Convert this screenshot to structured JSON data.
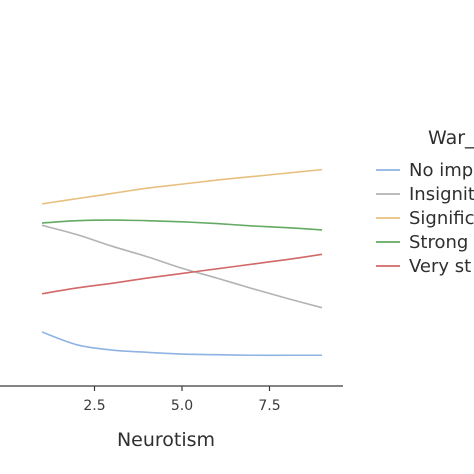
{
  "chart_data": {
    "type": "line",
    "xlabel": "Neurotism",
    "ylabel": "",
    "xlim": [
      1.0,
      9.5
    ],
    "ylim": [
      0,
      1
    ],
    "x_ticks": [
      2.5,
      5.0,
      7.5
    ],
    "x_tick_labels": [
      "2.5",
      "5.0",
      "7.5"
    ],
    "grid": false,
    "legend": {
      "title": "War_",
      "placement": "right",
      "entries": [
        "No imp",
        "Insignit",
        "Signific",
        "Strong",
        "Very st"
      ]
    },
    "x": [
      1,
      2,
      3,
      4,
      5,
      6,
      7,
      8,
      9
    ],
    "series": [
      {
        "name": "No imp",
        "color": "#8fb3e3",
        "values": [
          0.062,
          0.04,
          0.031,
          0.027,
          0.024,
          0.023,
          0.022,
          0.022,
          0.022
        ]
      },
      {
        "name": "Insignit",
        "color": "#b3b3b3",
        "values": [
          0.246,
          0.23,
          0.21,
          0.192,
          0.172,
          0.155,
          0.137,
          0.12,
          0.104
        ]
      },
      {
        "name": "Signific",
        "color": "#e7c07f",
        "values": [
          0.283,
          0.292,
          0.301,
          0.31,
          0.317,
          0.324,
          0.33,
          0.336,
          0.342
        ]
      },
      {
        "name": "Strong",
        "color": "#63aa63",
        "values": [
          0.25,
          0.254,
          0.255,
          0.254,
          0.252,
          0.249,
          0.245,
          0.242,
          0.238
        ]
      },
      {
        "name": "Very st",
        "color": "#d26868",
        "values": [
          0.128,
          0.138,
          0.146,
          0.155,
          0.163,
          0.171,
          0.179,
          0.187,
          0.196
        ]
      }
    ]
  }
}
